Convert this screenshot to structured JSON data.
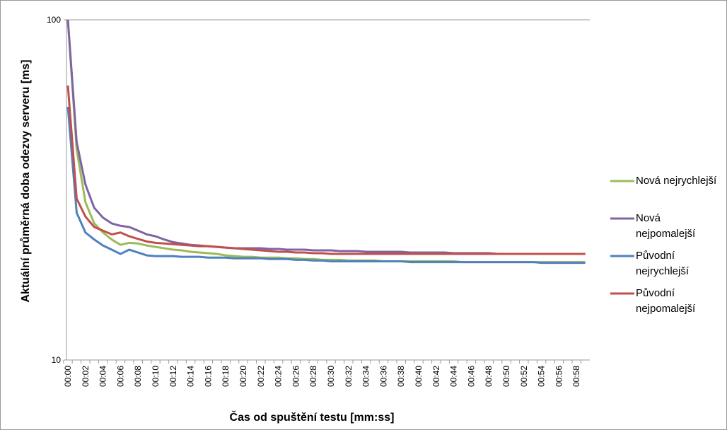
{
  "chart_data": {
    "type": "line",
    "y_label": "Aktuální průměrná doba odezvy serveru [ms]",
    "x_label": "Čas od spuštění testu [mm:ss]",
    "categories": [
      "00:00",
      null,
      "00:02",
      null,
      "00:04",
      null,
      "00:06",
      null,
      "00:08",
      null,
      "00:10",
      null,
      "00:12",
      null,
      "00:14",
      null,
      "00:16",
      null,
      "00:18",
      null,
      "00:20",
      null,
      "00:22",
      null,
      "00:24",
      null,
      "00:26",
      null,
      "00:28",
      null,
      "00:30",
      null,
      "00:32",
      null,
      "00:34",
      null,
      "00:36",
      null,
      "00:38",
      null,
      "00:40",
      null,
      "00:42",
      null,
      "00:44",
      null,
      "00:46",
      null,
      "00:48",
      null,
      "00:50",
      null,
      "00:52",
      null,
      "00:54",
      null,
      "00:56",
      null,
      "00:58",
      null
    ],
    "ylim": [
      10,
      100
    ],
    "yticks": [
      10,
      100
    ],
    "log_y": true,
    "grid": true,
    "legend": "right",
    "series": [
      {
        "name": "Nová nejrychlejší",
        "color": "#9bbb59",
        "values": [
          100,
          41.6,
          29.1,
          25.2,
          23.7,
          22.6,
          21.8,
          22.1,
          22,
          21.7,
          21.5,
          21.3,
          21.1,
          21,
          20.8,
          20.7,
          20.6,
          20.5,
          20.3,
          20.2,
          20.1,
          20.1,
          20,
          20,
          20,
          19.9,
          19.9,
          19.8,
          19.8,
          19.7,
          19.7,
          19.7,
          19.6,
          19.6,
          19.6,
          19.6,
          19.5,
          19.5,
          19.5,
          19.5,
          19.5,
          19.5,
          19.5,
          19.5,
          19.5,
          19.4,
          19.4,
          19.4,
          19.4,
          19.4,
          19.4,
          19.4,
          19.4,
          19.4,
          19.4,
          19.4,
          19.4,
          19.4,
          19.4,
          19.4
        ]
      },
      {
        "name": "Nová nejpomalejší",
        "color": "#8064a2",
        "values": [
          100,
          43.7,
          32.8,
          28,
          26.2,
          25.2,
          24.8,
          24.6,
          24,
          23.4,
          23.1,
          22.6,
          22.2,
          22,
          21.8,
          21.7,
          21.6,
          21.5,
          21.4,
          21.3,
          21.3,
          21.3,
          21.3,
          21.2,
          21.2,
          21.1,
          21.1,
          21.1,
          21,
          21,
          21,
          20.9,
          20.9,
          20.9,
          20.8,
          20.8,
          20.8,
          20.8,
          20.8,
          20.7,
          20.7,
          20.7,
          20.7,
          20.7,
          20.6,
          20.6,
          20.6,
          20.6,
          20.6,
          20.5,
          20.5,
          20.5,
          20.5,
          20.5,
          20.5,
          20.5,
          20.5,
          20.5,
          20.5,
          20.5
        ]
      },
      {
        "name": "Původní nejrychlejší",
        "color": "#4f81bd",
        "values": [
          55.5,
          27.1,
          23.7,
          22.6,
          21.7,
          21.1,
          20.5,
          21.1,
          20.7,
          20.3,
          20.2,
          20.2,
          20.2,
          20.1,
          20.1,
          20.1,
          20,
          20,
          20,
          19.9,
          19.9,
          19.9,
          19.9,
          19.8,
          19.8,
          19.8,
          19.7,
          19.7,
          19.6,
          19.6,
          19.5,
          19.5,
          19.5,
          19.5,
          19.5,
          19.5,
          19.5,
          19.5,
          19.5,
          19.4,
          19.4,
          19.4,
          19.4,
          19.4,
          19.4,
          19.4,
          19.4,
          19.4,
          19.4,
          19.4,
          19.4,
          19.4,
          19.4,
          19.4,
          19.3,
          19.3,
          19.3,
          19.3,
          19.3,
          19.3
        ]
      },
      {
        "name": "Původní nejpomalejší",
        "color": "#c0504d",
        "values": [
          64.1,
          29.8,
          26.4,
          24.6,
          24,
          23.4,
          23.7,
          23.1,
          22.7,
          22.3,
          22.1,
          22,
          21.9,
          21.8,
          21.7,
          21.6,
          21.6,
          21.5,
          21.4,
          21.3,
          21.2,
          21.1,
          21,
          20.9,
          20.8,
          20.8,
          20.7,
          20.7,
          20.6,
          20.6,
          20.5,
          20.5,
          20.5,
          20.5,
          20.5,
          20.5,
          20.5,
          20.5,
          20.5,
          20.5,
          20.5,
          20.5,
          20.5,
          20.5,
          20.5,
          20.5,
          20.5,
          20.5,
          20.5,
          20.5,
          20.5,
          20.5,
          20.5,
          20.5,
          20.5,
          20.5,
          20.5,
          20.5,
          20.5,
          20.5
        ]
      }
    ]
  }
}
